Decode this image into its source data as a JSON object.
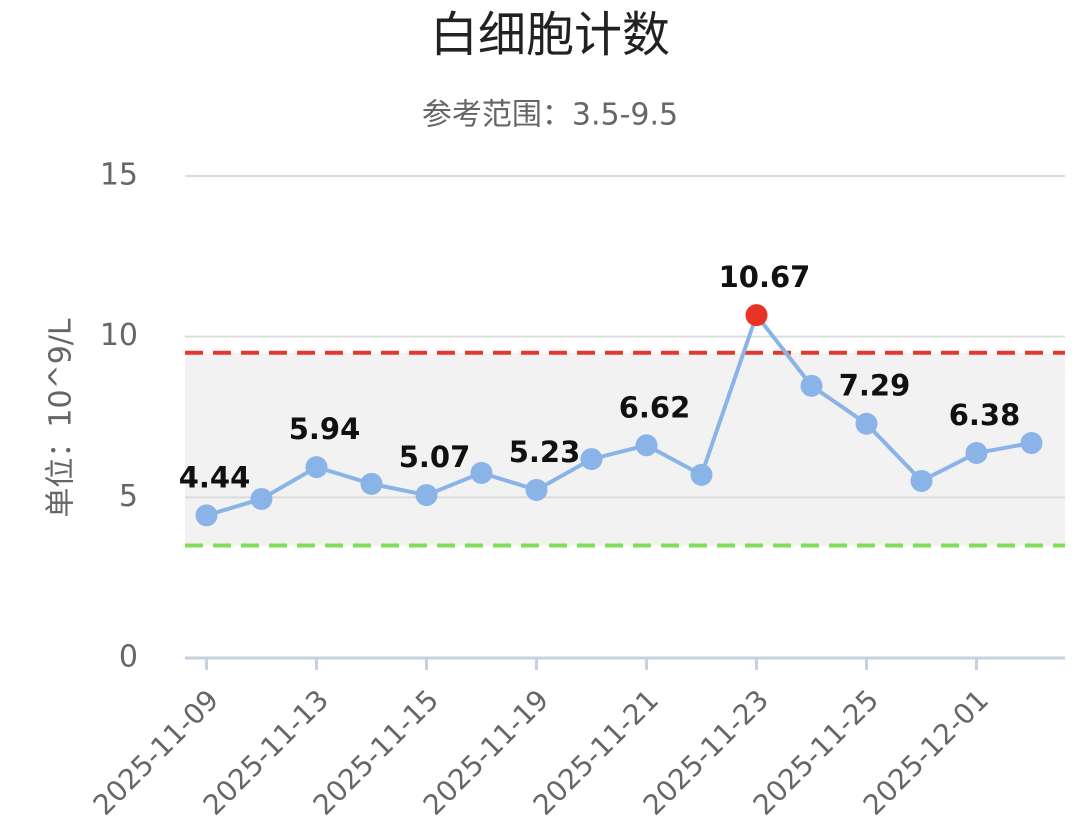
{
  "chart_data": {
    "type": "line",
    "title": "白细胞计数",
    "subtitle": "参考范围：3.5-9.5",
    "y_label": "单位：10^9/L",
    "categories": [
      "2025-11-09",
      null,
      "2025-11-13",
      null,
      "2025-11-15",
      null,
      "2025-11-19",
      null,
      "2025-11-21",
      null,
      "2025-11-23",
      null,
      "2025-11-25",
      null,
      "2025-12-01",
      null
    ],
    "values": [
      4.44,
      4.95,
      5.94,
      5.42,
      5.07,
      5.76,
      5.23,
      6.19,
      6.62,
      5.7,
      10.67,
      8.47,
      7.29,
      5.51,
      6.38,
      6.69
    ],
    "value_labels": [
      "4.44",
      null,
      "5.94",
      null,
      "5.07",
      null,
      "5.23",
      null,
      "6.62",
      null,
      "10.67",
      null,
      "7.29",
      null,
      "6.38",
      null
    ],
    "color": "#8ab4e8",
    "alert_color": "#e63323",
    "reference_range": [
      3.5,
      9.5
    ],
    "range_colors": [
      "#7ee05a",
      "#e03a2e"
    ],
    "range_fill": "#f2f2f2",
    "ylim": [
      0,
      15
    ],
    "yticks": [
      0,
      5,
      10,
      15
    ],
    "grid": true
  }
}
